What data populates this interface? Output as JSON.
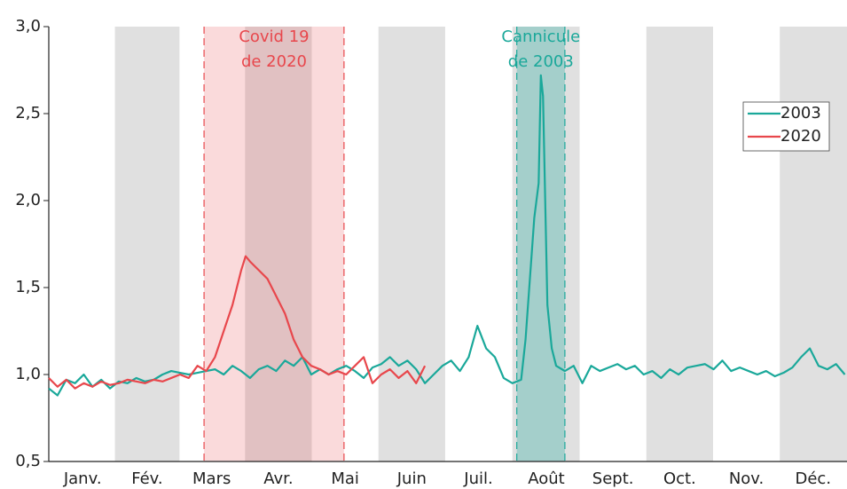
{
  "chart_data": {
    "type": "line",
    "xlim": [
      0,
      365
    ],
    "xticks": [
      {
        "value": 15.5,
        "label": "Janv."
      },
      {
        "value": 45,
        "label": "Fév."
      },
      {
        "value": 74.5,
        "label": "Mars"
      },
      {
        "value": 105,
        "label": "Avr."
      },
      {
        "value": 135.5,
        "label": "Mai"
      },
      {
        "value": 166,
        "label": "Juin"
      },
      {
        "value": 196.5,
        "label": "Juil."
      },
      {
        "value": 227.5,
        "label": "Août"
      },
      {
        "value": 258,
        "label": "Sept."
      },
      {
        "value": 288.5,
        "label": "Oct."
      },
      {
        "value": 319,
        "label": "Nov."
      },
      {
        "value": 349.5,
        "label": "Déc."
      }
    ],
    "ylim": [
      0.5,
      3.0
    ],
    "yticks": [
      {
        "value": 0.5,
        "label": "0,5"
      },
      {
        "value": 1.0,
        "label": "1,0"
      },
      {
        "value": 1.5,
        "label": "1,5"
      },
      {
        "value": 2.0,
        "label": "2,0"
      },
      {
        "value": 2.5,
        "label": "2,5"
      },
      {
        "value": 3.0,
        "label": "3,0"
      }
    ],
    "legend": "upper right",
    "annotations": [
      {
        "lines": [
          "Covid 19",
          "de 2020"
        ],
        "x": [
          71,
          135
        ],
        "color": "#e8474c"
      },
      {
        "lines": [
          "Cannicule",
          "de 2003"
        ],
        "x": [
          214,
          236
        ],
        "color": "#1aa89a"
      }
    ],
    "series": [
      {
        "name": "2003",
        "color": "#1aa89a",
        "x": [
          0,
          4,
          8,
          12,
          16,
          20,
          24,
          28,
          32,
          36,
          40,
          44,
          48,
          52,
          56,
          60,
          64,
          68,
          72,
          76,
          80,
          84,
          88,
          92,
          96,
          100,
          104,
          108,
          112,
          116,
          120,
          124,
          128,
          132,
          136,
          140,
          144,
          148,
          152,
          156,
          160,
          164,
          168,
          172,
          176,
          180,
          184,
          188,
          192,
          196,
          200,
          204,
          208,
          212,
          216,
          218,
          220,
          222,
          224,
          225,
          226,
          228,
          230,
          232,
          236,
          240,
          244,
          248,
          252,
          256,
          260,
          264,
          268,
          272,
          276,
          280,
          284,
          288,
          292,
          296,
          300,
          304,
          308,
          312,
          316,
          320,
          324,
          328,
          332,
          336,
          340,
          344,
          348,
          352,
          356,
          360,
          364
        ],
        "values": [
          0.92,
          0.88,
          0.97,
          0.95,
          1.0,
          0.93,
          0.97,
          0.92,
          0.96,
          0.95,
          0.98,
          0.96,
          0.97,
          1.0,
          1.02,
          1.01,
          1.0,
          1.01,
          1.02,
          1.03,
          1.0,
          1.05,
          1.02,
          0.98,
          1.03,
          1.05,
          1.02,
          1.08,
          1.05,
          1.1,
          1.0,
          1.03,
          1.0,
          1.03,
          1.05,
          1.02,
          0.98,
          1.04,
          1.06,
          1.1,
          1.05,
          1.08,
          1.03,
          0.95,
          1.0,
          1.05,
          1.08,
          1.02,
          1.1,
          1.28,
          1.15,
          1.1,
          0.98,
          0.95,
          0.97,
          1.2,
          1.55,
          1.9,
          2.1,
          2.72,
          2.6,
          1.4,
          1.15,
          1.05,
          1.02,
          1.05,
          0.95,
          1.05,
          1.02,
          1.04,
          1.06,
          1.03,
          1.05,
          1.0,
          1.02,
          0.98,
          1.03,
          1.0,
          1.04,
          1.05,
          1.06,
          1.03,
          1.08,
          1.02,
          1.04,
          1.02,
          1.0,
          1.02,
          0.99,
          1.01,
          1.04,
          1.1,
          1.15,
          1.05,
          1.03,
          1.06,
          1.0
        ]
      },
      {
        "name": "2020",
        "color": "#e8474c",
        "x": [
          0,
          4,
          8,
          12,
          16,
          20,
          24,
          28,
          32,
          36,
          40,
          44,
          48,
          52,
          56,
          60,
          64,
          68,
          72,
          76,
          80,
          84,
          88,
          90,
          92,
          96,
          100,
          104,
          108,
          112,
          116,
          120,
          124,
          128,
          132,
          136,
          140,
          144,
          148,
          152,
          156,
          160,
          164,
          168,
          172
        ],
        "values": [
          0.98,
          0.93,
          0.97,
          0.92,
          0.95,
          0.93,
          0.96,
          0.94,
          0.95,
          0.97,
          0.96,
          0.95,
          0.97,
          0.96,
          0.98,
          1.0,
          0.98,
          1.05,
          1.02,
          1.1,
          1.25,
          1.4,
          1.6,
          1.68,
          1.65,
          1.6,
          1.55,
          1.45,
          1.35,
          1.2,
          1.1,
          1.05,
          1.03,
          1.0,
          1.02,
          1.0,
          1.05,
          1.1,
          0.95,
          1.0,
          1.03,
          0.98,
          1.02,
          0.95,
          1.05
        ]
      }
    ]
  }
}
